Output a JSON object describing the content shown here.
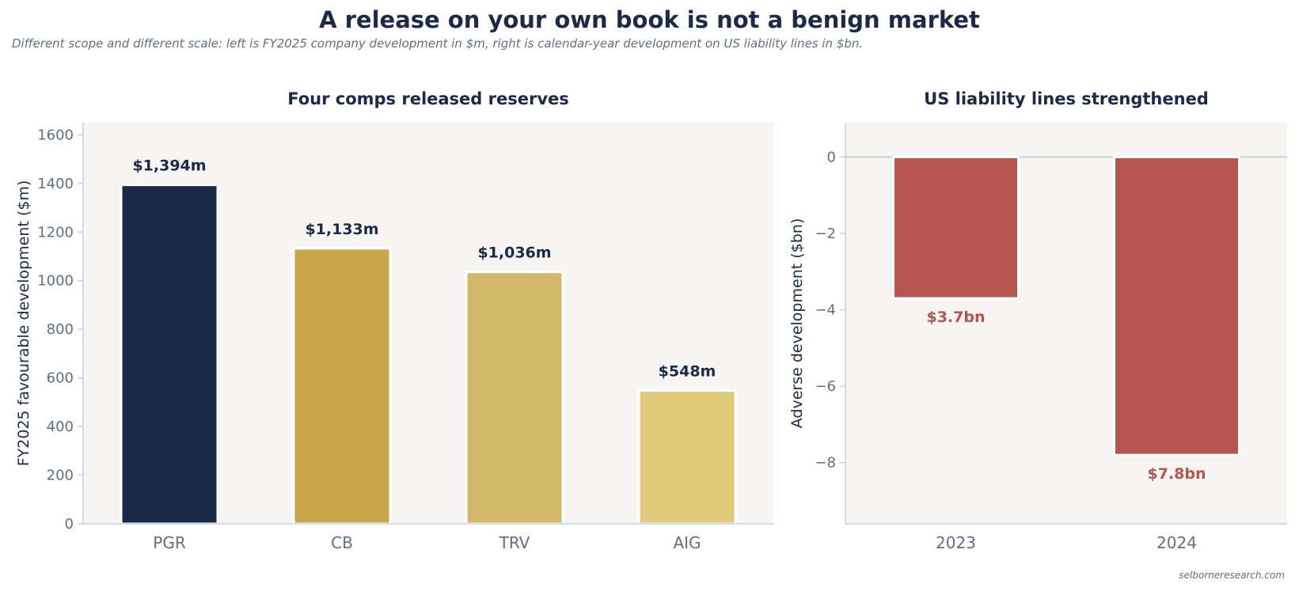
{
  "title": "A release on your own book is not a benign market",
  "subtitle": "Different scope and different scale: left is FY2025 company development in $m, right is calendar-year development on US liability lines in $bn.",
  "footer": "selborneresearch.com",
  "chart_data": [
    {
      "type": "bar",
      "title": "Four comps released reserves",
      "xlabel": "",
      "ylabel": "FY2025 favourable development ($m)",
      "categories": [
        "PGR",
        "CB",
        "TRV",
        "AIG"
      ],
      "values": [
        1394,
        1133,
        1036,
        548
      ],
      "data_labels": [
        "$1,394m",
        "$1,133m",
        "$1,036m",
        "$548m"
      ],
      "colors": [
        "#1c2a4a",
        "#c8a74a",
        "#d3b96b",
        "#e0c97b"
      ],
      "ylim": [
        0,
        1650
      ],
      "yticks": [
        0,
        200,
        400,
        600,
        800,
        1000,
        1200,
        1400,
        1600
      ],
      "grid": false,
      "background": "#f6f5f2"
    },
    {
      "type": "bar",
      "title": "US liability lines strengthened",
      "xlabel": "",
      "ylabel": "Adverse development ($bn)",
      "categories": [
        "2023",
        "2024"
      ],
      "values": [
        -3.7,
        -7.8
      ],
      "data_labels": [
        "$3.7bn",
        "$7.8bn"
      ],
      "colors": [
        "#b65450",
        "#b65450"
      ],
      "ylim": [
        -9.6,
        0.9
      ],
      "yticks": [
        0,
        -2,
        -4,
        -6,
        -8
      ],
      "ytick_labels": [
        "0",
        "−2",
        "−4",
        "−6",
        "−8"
      ],
      "grid": false,
      "background": "#f6f5f2",
      "reference_line": 0
    }
  ]
}
